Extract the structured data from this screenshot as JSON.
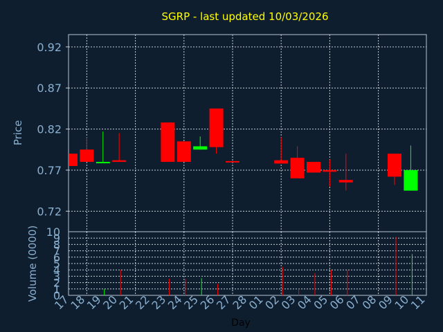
{
  "chart_data": {
    "type": "candlestick",
    "title": "SGRP - last updated 10/03/2026",
    "xlabel": "Day",
    "price": {
      "ylabel": "Price",
      "ylim": [
        0.695,
        0.935
      ],
      "yticks": [
        0.72,
        0.77,
        0.82,
        0.87,
        0.92
      ],
      "ytick_labels": [
        "0.72",
        "0.77",
        "0.82",
        "0.87",
        "0.92"
      ],
      "grid": true
    },
    "volume": {
      "ylabel": "Volume (0000)",
      "ylim": [
        0,
        10
      ],
      "yticks": [
        0,
        1,
        2,
        3,
        4,
        5,
        6,
        7,
        8,
        9,
        10
      ],
      "ytick_labels": [
        "0",
        "1",
        "2",
        "3",
        "4",
        "5",
        "6",
        "7",
        "8",
        "9",
        "10"
      ],
      "grid": true
    },
    "x_tick_labels": [
      "17",
      "18",
      "19",
      "20",
      "21",
      "22",
      "23",
      "24",
      "25",
      "26",
      "27",
      "28",
      "01",
      "02",
      "03",
      "04",
      "05",
      "06",
      "07",
      "08",
      "09",
      "10",
      "11"
    ],
    "colors": {
      "up": "#00ff00",
      "down": "#ff0000",
      "grid": "#c8d0d8",
      "background": "#0f1e2f",
      "axis_text": "#8ab0d0",
      "title": "#ffff00"
    },
    "candles": [
      {
        "i": 0,
        "open": 0.79,
        "high": 0.79,
        "low": 0.775,
        "close": 0.775,
        "volume": 0
      },
      {
        "i": 1,
        "open": 0.795,
        "high": 0.81,
        "low": 0.78,
        "close": 0.78,
        "volume": 0
      },
      {
        "i": 2,
        "open": 0.779,
        "high": 0.817,
        "low": 0.779,
        "close": 0.78,
        "volume": 1.0
      },
      {
        "i": 3,
        "open": 0.782,
        "high": 0.815,
        "low": 0.78,
        "close": 0.78,
        "volume": 4.0
      },
      {
        "i": 6,
        "open": 0.828,
        "high": 0.828,
        "low": 0.78,
        "close": 0.78,
        "volume": 2.6
      },
      {
        "i": 7,
        "open": 0.805,
        "high": 0.805,
        "low": 0.78,
        "close": 0.78,
        "volume": 2.6
      },
      {
        "i": 8,
        "open": 0.795,
        "high": 0.811,
        "low": 0.795,
        "close": 0.799,
        "volume": 2.7
      },
      {
        "i": 9,
        "open": 0.845,
        "high": 0.845,
        "low": 0.79,
        "close": 0.798,
        "volume": 1.8
      },
      {
        "i": 10,
        "open": 0.781,
        "high": 0.781,
        "low": 0.78,
        "close": 0.78,
        "volume": 0
      },
      {
        "i": 13,
        "open": 0.782,
        "high": 0.81,
        "low": 0.778,
        "close": 0.778,
        "volume": 4.5
      },
      {
        "i": 14,
        "open": 0.785,
        "high": 0.799,
        "low": 0.76,
        "close": 0.76,
        "volume": 1.0
      },
      {
        "i": 15,
        "open": 0.78,
        "high": 0.78,
        "low": 0.767,
        "close": 0.767,
        "volume": 3.5
      },
      {
        "i": 16,
        "open": 0.77,
        "high": 0.783,
        "low": 0.75,
        "close": 0.768,
        "volume": 4.0
      },
      {
        "i": 17,
        "open": 0.758,
        "high": 0.79,
        "low": 0.745,
        "close": 0.755,
        "volume": 4.0
      },
      {
        "i": 20,
        "open": 0.79,
        "high": 0.79,
        "low": 0.752,
        "close": 0.762,
        "volume": 9.2
      },
      {
        "i": 21,
        "open": 0.745,
        "high": 0.8,
        "low": 0.745,
        "close": 0.77,
        "volume": 6.5
      }
    ]
  }
}
